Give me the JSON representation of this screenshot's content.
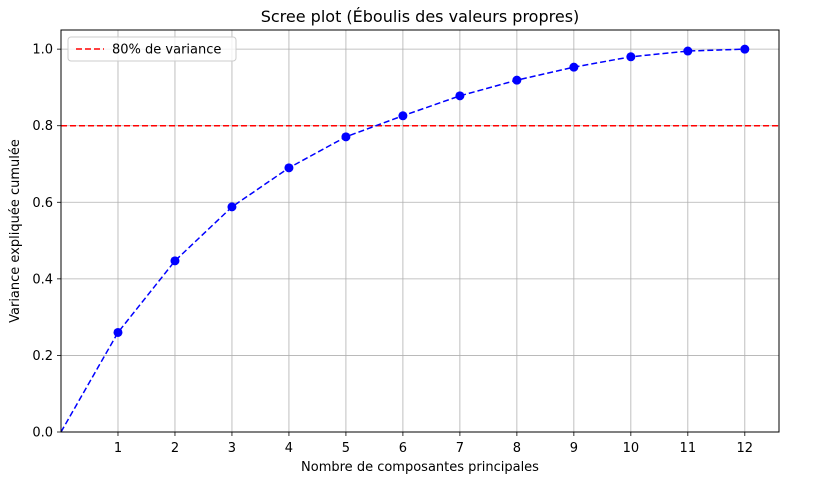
{
  "chart_data": {
    "type": "line",
    "title": "Scree plot (Éboulis des valeurs propres)",
    "xlabel": "Nombre de composantes principales",
    "ylabel": "Variance expliquée cumulée",
    "xlim": [
      0,
      12.6
    ],
    "ylim": [
      0,
      1.05
    ],
    "x_ticks": [
      1,
      2,
      3,
      4,
      5,
      6,
      7,
      8,
      9,
      10,
      11,
      12
    ],
    "y_ticks": [
      0.0,
      0.2,
      0.4,
      0.6,
      0.8,
      1.0
    ],
    "y_tick_labels": [
      "0.0",
      "0.2",
      "0.4",
      "0.6",
      "0.8",
      "1.0"
    ],
    "grid": true,
    "series": [
      {
        "x": [
          0,
          1,
          2,
          3,
          4,
          5,
          6,
          7,
          8,
          9,
          10,
          11,
          12
        ],
        "values": [
          0,
          0.26,
          0.447,
          0.588,
          0.69,
          0.771,
          0.826,
          0.878,
          0.919,
          0.953,
          0.98,
          0.995,
          1.0
        ],
        "style": "dashed",
        "marker": "circle",
        "marker_start_index": 1,
        "color": "#0000ff"
      }
    ],
    "reference_lines": [
      {
        "y": 0.8,
        "label": "80% de variance",
        "style": "dashed",
        "color": "#ff0000"
      }
    ],
    "legend": {
      "position": "top-left",
      "entries": [
        "80% de variance"
      ]
    }
  }
}
